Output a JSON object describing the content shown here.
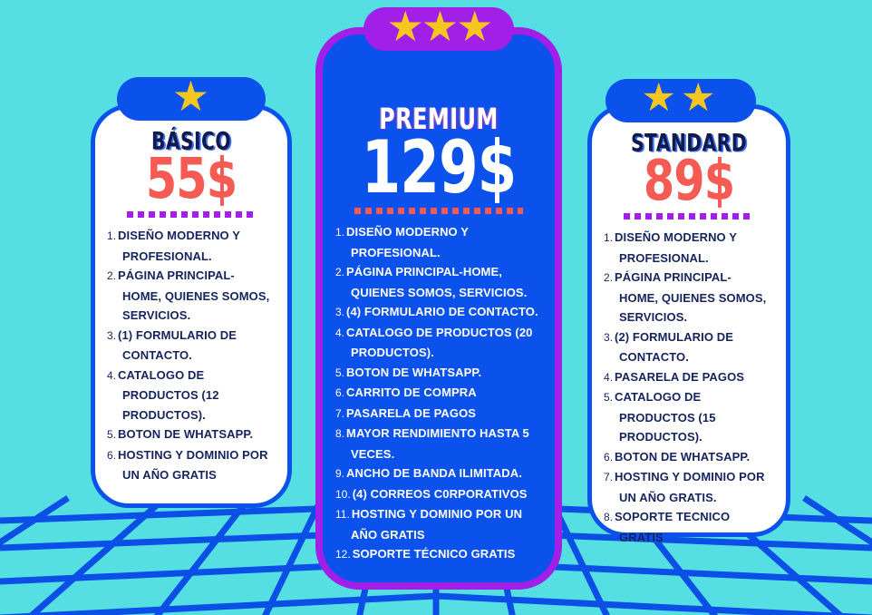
{
  "poster": {
    "background_color": "#56DFE2",
    "grid_color": "#0B4FE6",
    "star_color": "#F5C61D",
    "plans": [
      {
        "name": "BÁSICO",
        "price": "55$",
        "stars": 1,
        "banner_color": "#0B51EC",
        "card_background": "#FFFFFF",
        "border_color": "#0B51EC",
        "title_color": "#101A4D",
        "price_color": "#F55B52",
        "divider_color": "#A21FE8",
        "features": [
          "DISEÑO MODERNO Y PROFESIONAL.",
          "PÁGINA PRINCIPAL-HOME, QUIENES SOMOS, SERVICIOS.",
          "(1) FORMULARIO DE CONTACTO.",
          "CATALOGO DE PRODUCTOS (12 PRODUCTOS).",
          "BOTON DE WHATSAPP.",
          "HOSTING Y DOMINIO POR UN AÑO GRATIS"
        ]
      },
      {
        "name": "PREMIUM",
        "price": "129$",
        "stars": 3,
        "banner_color": "#A21FE8",
        "card_background": "#0B51EC",
        "border_color": "#A21FE8",
        "title_color": "#FFFFFF",
        "price_color": "#FFFFFF",
        "divider_color": "#F55B52",
        "features": [
          "DISEÑO MODERNO Y PROFESIONAL.",
          "PÁGINA PRINCIPAL-HOME, QUIENES SOMOS, SERVICIOS.",
          "(4) FORMULARIO DE CONTACTO.",
          "CATALOGO DE PRODUCTOS (20 PRODUCTOS).",
          "BOTON DE WHATSAPP.",
          "CARRITO DE COMPRA",
          "PASARELA DE PAGOS",
          "MAYOR RENDIMIENTO HASTA 5 VECES.",
          "ANCHO DE BANDA ILIMITADA.",
          "(4) CORREOS C0RPORATIVOS",
          "HOSTING Y DOMINIO POR UN AÑO GRATIS",
          "SOPORTE TÉCNICO GRATIS"
        ]
      },
      {
        "name": "STANDARD",
        "price": "89$",
        "stars": 2,
        "banner_color": "#0B51EC",
        "card_background": "#FFFFFF",
        "border_color": "#0B51EC",
        "title_color": "#101A4D",
        "price_color": "#F55B52",
        "divider_color": "#A21FE8",
        "features": [
          "DISEÑO MODERNO Y PROFESIONAL.",
          "PÁGINA PRINCIPAL-HOME, QUIENES SOMOS, SERVICIOS.",
          "(2) FORMULARIO DE CONTACTO.",
          "PASARELA DE PAGOS",
          "CATALOGO DE PRODUCTOS (15 PRODUCTOS).",
          "BOTON DE WHATSAPP.",
          "HOSTING Y DOMINIO POR UN AÑO GRATIS.",
          "SOPORTE TECNICO GRATIS"
        ]
      }
    ]
  }
}
